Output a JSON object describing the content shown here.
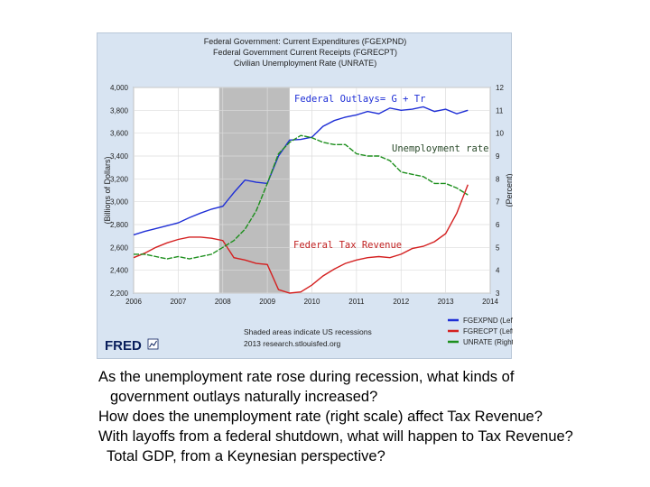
{
  "chart_data": {
    "type": "line",
    "title_lines": [
      "Federal Government: Current Expenditures (FGEXPND)",
      "Federal Government Current Receipts (FGRECPT)",
      "Civilian Unemployment Rate (UNRATE)"
    ],
    "ylabel_left": "(Billions of Dollars)",
    "ylabel_right": "(Percent)",
    "x_ticks": [
      "2006",
      "2007",
      "2008",
      "2009",
      "2010",
      "2011",
      "2012",
      "2013",
      "2014"
    ],
    "y_left_ticks": [
      "2,200",
      "2,400",
      "2,600",
      "2,800",
      "3,000",
      "3,200",
      "3,400",
      "3,600",
      "3,800",
      "4,000"
    ],
    "y_right_ticks": [
      "3",
      "4",
      "5",
      "6",
      "7",
      "8",
      "9",
      "10",
      "11",
      "12"
    ],
    "xlim": [
      2006,
      2014
    ],
    "ylim_left": [
      2200,
      4000
    ],
    "ylim_right": [
      3,
      12
    ],
    "recession": {
      "start": 2007.92,
      "end": 2009.5
    },
    "series": [
      {
        "name": "FGEXPND (Left)",
        "axis": "left",
        "color": "#1f2fd6",
        "points": [
          [
            2006,
            2710
          ],
          [
            2006.25,
            2740
          ],
          [
            2006.5,
            2765
          ],
          [
            2006.75,
            2790
          ],
          [
            2007,
            2815
          ],
          [
            2007.25,
            2860
          ],
          [
            2007.5,
            2900
          ],
          [
            2007.75,
            2935
          ],
          [
            2008,
            2960
          ],
          [
            2008.25,
            3080
          ],
          [
            2008.5,
            3190
          ],
          [
            2008.75,
            3170
          ],
          [
            2009,
            3160
          ],
          [
            2009.25,
            3400
          ],
          [
            2009.5,
            3540
          ],
          [
            2009.75,
            3545
          ],
          [
            2010,
            3565
          ],
          [
            2010.25,
            3660
          ],
          [
            2010.5,
            3710
          ],
          [
            2010.75,
            3740
          ],
          [
            2011,
            3760
          ],
          [
            2011.25,
            3790
          ],
          [
            2011.5,
            3770
          ],
          [
            2011.75,
            3820
          ],
          [
            2012,
            3800
          ],
          [
            2012.25,
            3810
          ],
          [
            2012.5,
            3830
          ],
          [
            2012.75,
            3790
          ],
          [
            2013,
            3810
          ],
          [
            2013.25,
            3770
          ],
          [
            2013.5,
            3800
          ]
        ]
      },
      {
        "name": "FGRECPT (Left)",
        "axis": "left",
        "color": "#d42020",
        "points": [
          [
            2006,
            2510
          ],
          [
            2006.25,
            2550
          ],
          [
            2006.5,
            2600
          ],
          [
            2006.75,
            2640
          ],
          [
            2007,
            2670
          ],
          [
            2007.25,
            2690
          ],
          [
            2007.5,
            2690
          ],
          [
            2007.75,
            2680
          ],
          [
            2008,
            2660
          ],
          [
            2008.25,
            2510
          ],
          [
            2008.5,
            2490
          ],
          [
            2008.75,
            2460
          ],
          [
            2009,
            2450
          ],
          [
            2009.25,
            2230
          ],
          [
            2009.5,
            2200
          ],
          [
            2009.75,
            2210
          ],
          [
            2010,
            2270
          ],
          [
            2010.25,
            2350
          ],
          [
            2010.5,
            2410
          ],
          [
            2010.75,
            2460
          ],
          [
            2011,
            2490
          ],
          [
            2011.25,
            2510
          ],
          [
            2011.5,
            2520
          ],
          [
            2011.75,
            2510
          ],
          [
            2012,
            2540
          ],
          [
            2012.25,
            2590
          ],
          [
            2012.5,
            2610
          ],
          [
            2012.75,
            2650
          ],
          [
            2013,
            2720
          ],
          [
            2013.25,
            2900
          ],
          [
            2013.5,
            3150
          ]
        ]
      },
      {
        "name": "UNRATE (Right)",
        "axis": "right",
        "color": "#1d8f1d",
        "points": [
          [
            2006,
            4.7
          ],
          [
            2006.25,
            4.7
          ],
          [
            2006.5,
            4.6
          ],
          [
            2006.75,
            4.5
          ],
          [
            2007,
            4.6
          ],
          [
            2007.25,
            4.5
          ],
          [
            2007.5,
            4.6
          ],
          [
            2007.75,
            4.7
          ],
          [
            2008,
            5.0
          ],
          [
            2008.25,
            5.3
          ],
          [
            2008.5,
            5.8
          ],
          [
            2008.75,
            6.6
          ],
          [
            2009,
            7.8
          ],
          [
            2009.25,
            9.1
          ],
          [
            2009.5,
            9.6
          ],
          [
            2009.75,
            9.9
          ],
          [
            2010,
            9.8
          ],
          [
            2010.25,
            9.6
          ],
          [
            2010.5,
            9.5
          ],
          [
            2010.75,
            9.5
          ],
          [
            2011,
            9.1
          ],
          [
            2011.25,
            9.0
          ],
          [
            2011.5,
            9.0
          ],
          [
            2011.75,
            8.8
          ],
          [
            2012,
            8.3
          ],
          [
            2012.25,
            8.2
          ],
          [
            2012.5,
            8.1
          ],
          [
            2012.75,
            7.8
          ],
          [
            2013,
            7.8
          ],
          [
            2013.25,
            7.6
          ],
          [
            2013.5,
            7.3
          ]
        ]
      }
    ],
    "annotations": {
      "outlays": "Federal Outlays= G + Tr",
      "unemployment": "Unemployment rate",
      "tax": "Federal Tax Revenue"
    },
    "legend_placement": "bottom-right",
    "footer": {
      "logo": "FRED",
      "line1": "Shaded areas indicate US recessions",
      "line2": "2013 research.stlouisfed.org"
    }
  },
  "questions": {
    "q1a": "As the unemployment rate rose during recession, what kinds of",
    "q1b": "government outlays naturally increased?",
    "q2": "How does the unemployment rate (right scale) affect Tax Revenue?",
    "q3a": "With layoffs from a federal shutdown, what will happen to Tax Revenue?",
    "q3b": "Total GDP, from a Keynesian perspective?"
  }
}
